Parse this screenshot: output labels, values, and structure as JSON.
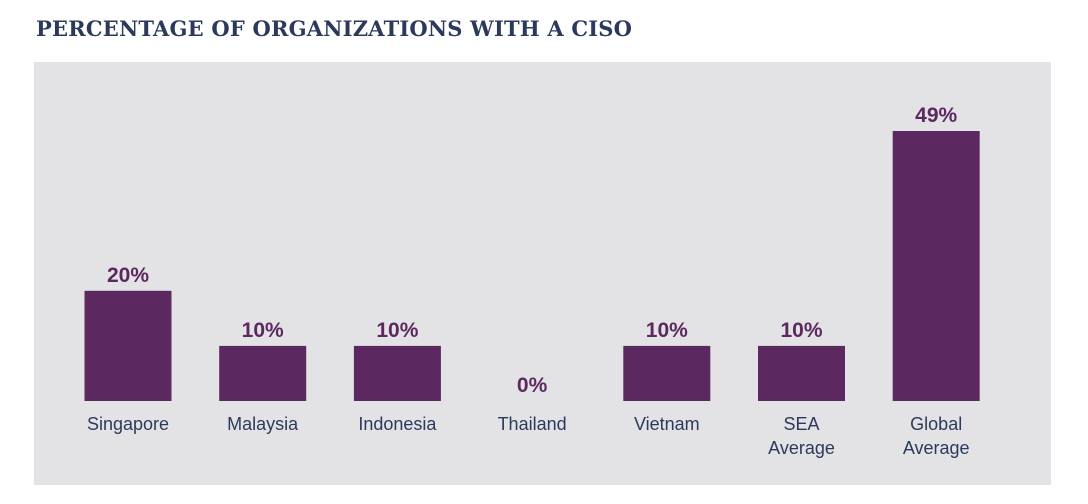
{
  "title": "PERCENTAGE OF ORGANIZATIONS WITH A CISO",
  "colors": {
    "bar": "#5c2860",
    "panel": "#e3e3e5",
    "title": "#2b3a5c",
    "category_text": "#2b3a5c"
  },
  "chart_data": {
    "type": "bar",
    "title": "PERCENTAGE OF ORGANIZATIONS WITH A CISO",
    "categories": [
      [
        "Singapore"
      ],
      [
        "Malaysia"
      ],
      [
        "Indonesia"
      ],
      [
        "Thailand"
      ],
      [
        "Vietnam"
      ],
      [
        "SEA",
        "Average"
      ],
      [
        "Global",
        "Average"
      ]
    ],
    "values": [
      20,
      10,
      10,
      0,
      10,
      10,
      49
    ],
    "value_labels": [
      "20%",
      "10%",
      "10%",
      "0%",
      "10%",
      "10%",
      "49%"
    ],
    "xlabel": "",
    "ylabel": "",
    "ylim": [
      0,
      49
    ],
    "grid": false,
    "legend": "none"
  }
}
